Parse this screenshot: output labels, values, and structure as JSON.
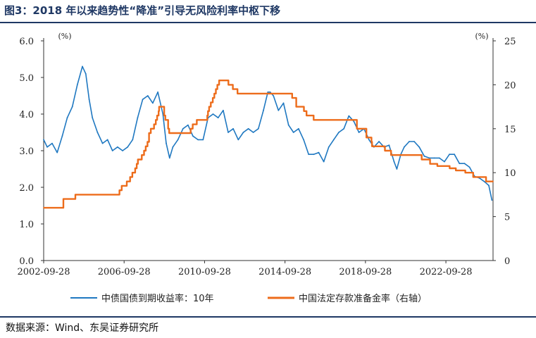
{
  "header": {
    "title": "图3：2018 年以来趋势性“降准”引导无风险利率中枢下移"
  },
  "footer": {
    "source": "数据来源：Wind、东吴证券研究所"
  },
  "colors": {
    "yield_line": "#1f78c1",
    "rrr_line": "#ed6c1b",
    "axis": "#333333",
    "title_rule": "#1f3864"
  },
  "chart_data": {
    "type": "line",
    "title": "",
    "grid": false,
    "legend_position": "bottom",
    "x_axis": {
      "type": "date",
      "range": [
        "2002-09-28",
        "2025-01-31"
      ],
      "tick_labels": [
        "2002-09-28",
        "2006-09-28",
        "2010-09-28",
        "2014-09-28",
        "2018-09-28",
        "2022-09-28"
      ]
    },
    "y_left": {
      "unit": "(%)",
      "range": [
        0,
        6
      ],
      "tick_labels": [
        "0.0",
        "1.0",
        "2.0",
        "3.0",
        "4.0",
        "5.0",
        "6.0"
      ]
    },
    "y_right": {
      "unit": "(%)",
      "range": [
        0,
        25
      ],
      "tick_labels": [
        "0",
        "5",
        "10",
        "15",
        "20",
        "25"
      ]
    },
    "series": [
      {
        "name": "中债国债到期收益率：10年",
        "axis": "left",
        "style": "line",
        "color": "#1f78c1",
        "points": [
          [
            "2002-09-28",
            3.3
          ],
          [
            "2002-12-01",
            3.1
          ],
          [
            "2003-03-01",
            3.2
          ],
          [
            "2003-06-01",
            2.95
          ],
          [
            "2003-09-01",
            3.4
          ],
          [
            "2003-12-01",
            3.9
          ],
          [
            "2004-03-01",
            4.2
          ],
          [
            "2004-06-01",
            4.8
          ],
          [
            "2004-09-01",
            5.3
          ],
          [
            "2004-11-01",
            5.1
          ],
          [
            "2005-01-01",
            4.4
          ],
          [
            "2005-03-01",
            3.9
          ],
          [
            "2005-06-01",
            3.5
          ],
          [
            "2005-09-01",
            3.2
          ],
          [
            "2005-12-01",
            3.3
          ],
          [
            "2006-03-01",
            3.0
          ],
          [
            "2006-06-01",
            3.1
          ],
          [
            "2006-09-01",
            3.0
          ],
          [
            "2006-12-01",
            3.1
          ],
          [
            "2007-03-01",
            3.3
          ],
          [
            "2007-06-01",
            3.9
          ],
          [
            "2007-09-01",
            4.4
          ],
          [
            "2007-12-01",
            4.5
          ],
          [
            "2008-03-01",
            4.3
          ],
          [
            "2008-06-01",
            4.6
          ],
          [
            "2008-09-01",
            4.0
          ],
          [
            "2008-11-01",
            3.2
          ],
          [
            "2009-01-01",
            2.8
          ],
          [
            "2009-03-01",
            3.1
          ],
          [
            "2009-06-01",
            3.3
          ],
          [
            "2009-09-01",
            3.6
          ],
          [
            "2009-12-01",
            3.7
          ],
          [
            "2010-03-01",
            3.4
          ],
          [
            "2010-06-01",
            3.3
          ],
          [
            "2010-09-01",
            3.3
          ],
          [
            "2010-12-01",
            3.9
          ],
          [
            "2011-03-01",
            4.0
          ],
          [
            "2011-06-01",
            3.9
          ],
          [
            "2011-09-01",
            4.1
          ],
          [
            "2011-12-01",
            3.5
          ],
          [
            "2012-03-01",
            3.6
          ],
          [
            "2012-06-01",
            3.3
          ],
          [
            "2012-09-01",
            3.5
          ],
          [
            "2012-12-01",
            3.6
          ],
          [
            "2013-03-01",
            3.5
          ],
          [
            "2013-06-01",
            3.6
          ],
          [
            "2013-09-01",
            4.1
          ],
          [
            "2013-11-20",
            4.6
          ],
          [
            "2014-01-01",
            4.6
          ],
          [
            "2014-03-01",
            4.5
          ],
          [
            "2014-06-01",
            4.1
          ],
          [
            "2014-09-01",
            4.3
          ],
          [
            "2014-12-01",
            3.7
          ],
          [
            "2015-03-01",
            3.5
          ],
          [
            "2015-06-01",
            3.6
          ],
          [
            "2015-09-01",
            3.3
          ],
          [
            "2015-12-01",
            2.9
          ],
          [
            "2016-03-01",
            2.9
          ],
          [
            "2016-06-01",
            2.95
          ],
          [
            "2016-09-01",
            2.7
          ],
          [
            "2016-12-01",
            3.1
          ],
          [
            "2017-03-01",
            3.3
          ],
          [
            "2017-06-01",
            3.5
          ],
          [
            "2017-09-01",
            3.6
          ],
          [
            "2017-12-01",
            3.95
          ],
          [
            "2018-03-01",
            3.8
          ],
          [
            "2018-06-01",
            3.5
          ],
          [
            "2018-09-01",
            3.6
          ],
          [
            "2018-12-01",
            3.3
          ],
          [
            "2019-03-01",
            3.1
          ],
          [
            "2019-06-01",
            3.25
          ],
          [
            "2019-09-01",
            3.1
          ],
          [
            "2019-12-01",
            3.15
          ],
          [
            "2020-03-01",
            2.7
          ],
          [
            "2020-04-20",
            2.5
          ],
          [
            "2020-07-01",
            2.9
          ],
          [
            "2020-09-01",
            3.1
          ],
          [
            "2020-12-01",
            3.25
          ],
          [
            "2021-03-01",
            3.25
          ],
          [
            "2021-06-01",
            3.1
          ],
          [
            "2021-09-01",
            2.85
          ],
          [
            "2021-12-01",
            2.8
          ],
          [
            "2022-03-01",
            2.8
          ],
          [
            "2022-06-01",
            2.8
          ],
          [
            "2022-09-01",
            2.7
          ],
          [
            "2022-12-01",
            2.9
          ],
          [
            "2023-03-01",
            2.9
          ],
          [
            "2023-06-01",
            2.65
          ],
          [
            "2023-09-01",
            2.65
          ],
          [
            "2023-12-01",
            2.55
          ],
          [
            "2024-03-01",
            2.3
          ],
          [
            "2024-06-01",
            2.25
          ],
          [
            "2024-09-01",
            2.15
          ],
          [
            "2024-11-15",
            2.05
          ],
          [
            "2025-01-10",
            1.65
          ]
        ]
      },
      {
        "name": "中国法定存款准备金率（右轴）",
        "axis": "right",
        "style": "step",
        "color": "#ed6c1b",
        "points": [
          [
            "2002-09-28",
            6.0
          ],
          [
            "2003-09-21",
            7.0
          ],
          [
            "2004-04-25",
            7.5
          ],
          [
            "2006-07-05",
            8.0
          ],
          [
            "2006-08-15",
            8.5
          ],
          [
            "2006-11-15",
            9.0
          ],
          [
            "2007-01-15",
            9.5
          ],
          [
            "2007-02-25",
            10.0
          ],
          [
            "2007-04-16",
            10.5
          ],
          [
            "2007-05-15",
            11.0
          ],
          [
            "2007-06-05",
            11.5
          ],
          [
            "2007-08-15",
            12.0
          ],
          [
            "2007-09-25",
            12.5
          ],
          [
            "2007-10-25",
            13.0
          ],
          [
            "2007-11-26",
            13.5
          ],
          [
            "2007-12-25",
            14.5
          ],
          [
            "2008-01-25",
            15.0
          ],
          [
            "2008-03-25",
            15.5
          ],
          [
            "2008-04-25",
            16.0
          ],
          [
            "2008-05-20",
            16.5
          ],
          [
            "2008-06-15",
            17.0
          ],
          [
            "2008-06-25",
            17.5
          ],
          [
            "2008-09-25",
            16.5
          ],
          [
            "2008-10-15",
            16.0
          ],
          [
            "2008-12-05",
            15.0
          ],
          [
            "2008-12-25",
            14.5
          ],
          [
            "2010-01-18",
            15.0
          ],
          [
            "2010-02-25",
            15.5
          ],
          [
            "2010-05-10",
            16.0
          ],
          [
            "2010-11-16",
            16.5
          ],
          [
            "2010-11-29",
            17.0
          ],
          [
            "2010-12-20",
            17.5
          ],
          [
            "2011-01-20",
            18.0
          ],
          [
            "2011-02-24",
            18.5
          ],
          [
            "2011-03-25",
            19.0
          ],
          [
            "2011-04-21",
            19.5
          ],
          [
            "2011-05-18",
            20.0
          ],
          [
            "2011-06-20",
            20.5
          ],
          [
            "2011-12-05",
            20.0
          ],
          [
            "2012-02-24",
            19.5
          ],
          [
            "2012-05-18",
            19.0
          ],
          [
            "2015-02-05",
            18.5
          ],
          [
            "2015-04-20",
            17.5
          ],
          [
            "2015-09-06",
            17.0
          ],
          [
            "2015-10-24",
            16.5
          ],
          [
            "2016-03-01",
            16.0
          ],
          [
            "2018-04-25",
            15.0
          ],
          [
            "2018-10-15",
            14.0
          ],
          [
            "2019-01-15",
            13.5
          ],
          [
            "2019-01-25",
            13.0
          ],
          [
            "2019-09-16",
            12.5
          ],
          [
            "2020-01-06",
            12.0
          ],
          [
            "2021-07-15",
            11.5
          ],
          [
            "2021-12-15",
            11.0
          ],
          [
            "2022-04-25",
            10.75
          ],
          [
            "2022-12-05",
            10.5
          ],
          [
            "2023-03-27",
            10.25
          ],
          [
            "2023-09-15",
            10.0
          ],
          [
            "2024-02-05",
            9.5
          ],
          [
            "2024-09-27",
            9.0
          ],
          [
            "2025-01-31",
            9.0
          ]
        ]
      }
    ]
  }
}
